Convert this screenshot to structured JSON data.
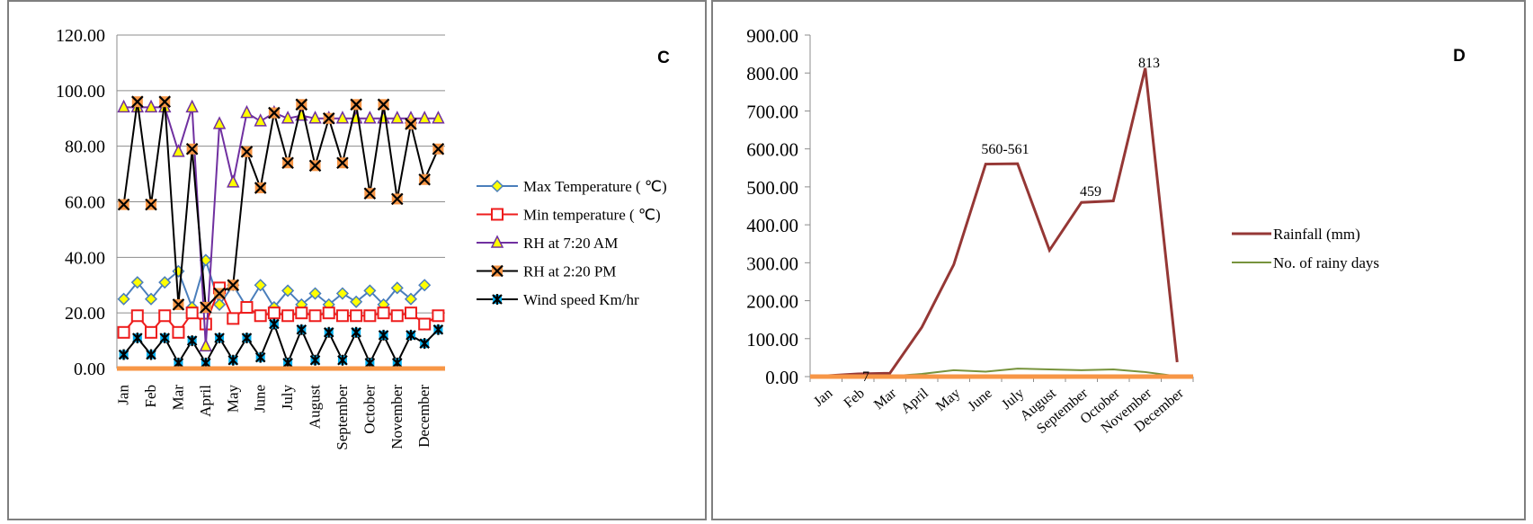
{
  "chart_data": [
    {
      "type": "line",
      "title": "",
      "panel_label": "C",
      "ylim": [
        0,
        120
      ],
      "y_ticks": [
        "0.00",
        "20.00",
        "40.00",
        "60.00",
        "80.00",
        "100.00",
        "120.00"
      ],
      "categories": [
        "Jan",
        "",
        "Feb",
        "",
        "Mar",
        "",
        "April",
        "",
        "May",
        "",
        "June",
        "",
        "July",
        "",
        "August",
        "",
        "September",
        "",
        "October",
        "",
        "November",
        "",
        "December",
        ""
      ],
      "grid": true,
      "legend_position": "right",
      "series": [
        {
          "name": "Max Temperature ( ℃)",
          "color": "#4a7ebb",
          "marker": "diamond",
          "values": [
            25,
            31,
            25,
            31,
            35,
            22,
            39,
            23,
            30,
            22,
            30,
            22,
            28,
            23,
            27,
            23,
            27,
            24,
            28,
            23,
            29,
            25,
            30,
            null
          ]
        },
        {
          "name": "Min temperature ( ℃)",
          "color": "#ee1c1c",
          "marker": "square",
          "values": [
            13,
            19,
            13,
            19,
            13,
            20,
            16,
            29,
            18,
            22,
            19,
            20,
            19,
            20,
            19,
            20,
            19,
            19,
            19,
            20,
            19,
            20,
            16,
            19
          ]
        },
        {
          "name": "RH at 7:20 AM",
          "color": "#7030a0",
          "marker": "triangle",
          "values": [
            94,
            94,
            94,
            94,
            78,
            94,
            8,
            88,
            67,
            92,
            89,
            92,
            90,
            91,
            90,
            90,
            90,
            90,
            90,
            90,
            90,
            90,
            90,
            90
          ]
        },
        {
          "name": "RH at 2:20 PM",
          "color": "#000000",
          "marker": "x",
          "values": [
            59,
            96,
            59,
            96,
            23,
            79,
            22,
            27,
            30,
            78,
            65,
            92,
            74,
            95,
            73,
            90,
            74,
            95,
            63,
            95,
            61,
            88,
            68,
            79
          ]
        },
        {
          "name": "Wind speed Km/hr",
          "color": "#000000",
          "marker": "star",
          "values": [
            5,
            11,
            5,
            11,
            2,
            10,
            2,
            11,
            3,
            11,
            4,
            16,
            2,
            14,
            3,
            13,
            3,
            13,
            2,
            12,
            2,
            12,
            9,
            14
          ]
        },
        {
          "name": "",
          "color": "#f79646",
          "marker": "none",
          "values": [
            0,
            0,
            0,
            0,
            0,
            0,
            0,
            0,
            0,
            0,
            0,
            0,
            0,
            0,
            0,
            0,
            0,
            0,
            0,
            0,
            0,
            0,
            0,
            0
          ]
        }
      ]
    },
    {
      "type": "line",
      "title": "",
      "panel_label": "D",
      "ylim": [
        0,
        900
      ],
      "y_ticks": [
        "0.00",
        "100.00",
        "200.00",
        "300.00",
        "400.00",
        "500.00",
        "600.00",
        "700.00",
        "800.00",
        "900.00"
      ],
      "categories": [
        "Jan",
        "Feb",
        "Mar",
        "April",
        "May",
        "June",
        "July",
        "August",
        "September",
        "October",
        "November",
        "December"
      ],
      "grid": false,
      "legend_position": "right",
      "series": [
        {
          "name": "Rainfall (mm)",
          "color": "#953735",
          "values": [
            2,
            7,
            9,
            130,
            295,
            560,
            561,
            333,
            459,
            463,
            813,
            38
          ]
        },
        {
          "name": "No. of rainy days",
          "color": "#77933c",
          "values": [
            0,
            1,
            1,
            7,
            17,
            13,
            21,
            19,
            17,
            19,
            12,
            1
          ]
        },
        {
          "name": "",
          "color": "#f79646",
          "values": [
            0,
            0,
            0,
            0,
            0,
            0,
            0,
            0,
            0,
            0,
            0,
            0
          ]
        }
      ],
      "annotations": [
        "7",
        "560-561",
        "459",
        "813"
      ]
    }
  ]
}
